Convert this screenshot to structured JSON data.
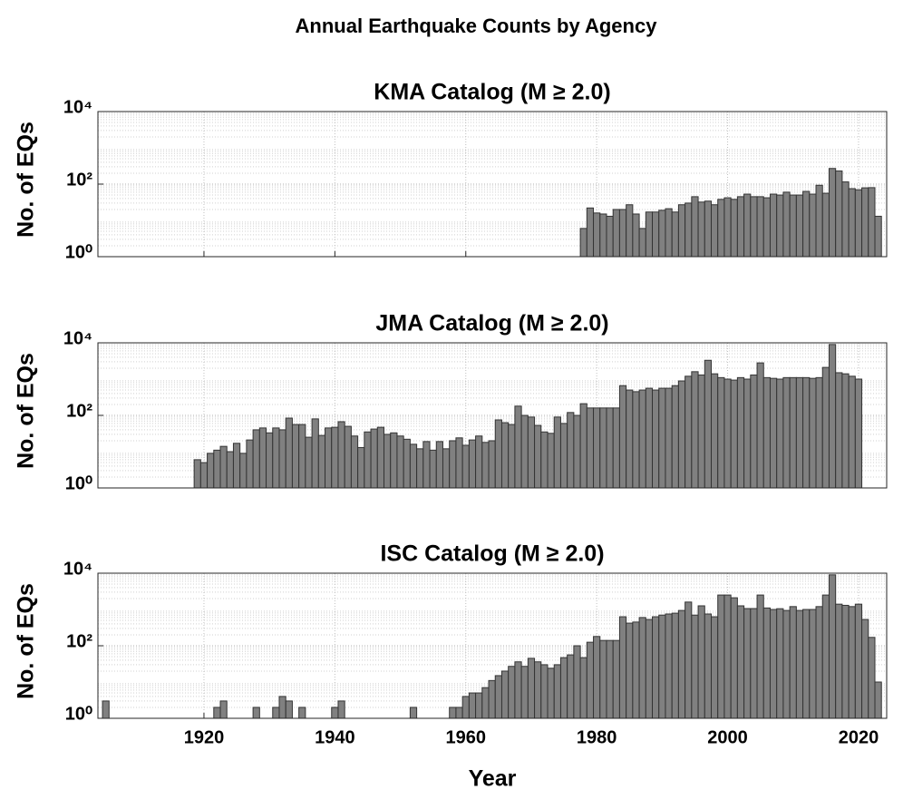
{
  "title": "Annual Earthquake Counts by Agency",
  "chart_data": [
    {
      "type": "bar",
      "title": "KMA Catalog (M ≥ 2.0)",
      "y_label": "No. of EQs",
      "color": "#808080",
      "edge_color": "#333333",
      "log_y": true,
      "grid": true,
      "xlim": [
        1903.8,
        2024.3
      ],
      "ylim": [
        1,
        10000
      ],
      "yticks": [
        {
          "value": 1,
          "label": "10⁰"
        },
        {
          "value": 100,
          "label": "10²"
        },
        {
          "value": 10000,
          "label": "10⁴"
        }
      ],
      "xticks": [
        1920,
        1940,
        1960,
        1980,
        2000,
        2020
      ],
      "xtick_labels": false,
      "x": [
        1978,
        1979,
        1980,
        1981,
        1982,
        1983,
        1984,
        1985,
        1986,
        1987,
        1988,
        1989,
        1990,
        1991,
        1992,
        1993,
        1994,
        1995,
        1996,
        1997,
        1998,
        1999,
        2000,
        2001,
        2002,
        2003,
        2004,
        2005,
        2006,
        2007,
        2008,
        2009,
        2010,
        2011,
        2012,
        2013,
        2014,
        2015,
        2016,
        2017,
        2018,
        2019,
        2020,
        2021,
        2022,
        2023
      ],
      "values": [
        6,
        22,
        16,
        15,
        13,
        20,
        20,
        27,
        15,
        6,
        17,
        17,
        19,
        21,
        17,
        27,
        30,
        45,
        32,
        34,
        27,
        38,
        42,
        38,
        45,
        53,
        45,
        45,
        42,
        53,
        50,
        60,
        50,
        50,
        63,
        53,
        93,
        56,
        270,
        230,
        115,
        75,
        70,
        79,
        80,
        13
      ]
    },
    {
      "type": "bar",
      "title": "JMA Catalog (M ≥ 2.0)",
      "y_label": "No. of EQs",
      "color": "#808080",
      "edge_color": "#333333",
      "log_y": true,
      "grid": true,
      "xlim": [
        1903.8,
        2024.3
      ],
      "ylim": [
        1,
        10000
      ],
      "yticks": [
        {
          "value": 1,
          "label": "10⁰"
        },
        {
          "value": 100,
          "label": "10²"
        },
        {
          "value": 10000,
          "label": "10⁴"
        }
      ],
      "xticks": [
        1920,
        1940,
        1960,
        1980,
        2000,
        2020
      ],
      "xtick_labels": false,
      "x": [
        1919,
        1920,
        1921,
        1922,
        1923,
        1924,
        1925,
        1926,
        1927,
        1928,
        1929,
        1930,
        1931,
        1932,
        1933,
        1934,
        1935,
        1936,
        1937,
        1938,
        1939,
        1940,
        1941,
        1942,
        1943,
        1944,
        1945,
        1946,
        1947,
        1948,
        1949,
        1950,
        1951,
        1952,
        1953,
        1954,
        1955,
        1956,
        1957,
        1958,
        1959,
        1960,
        1961,
        1962,
        1963,
        1964,
        1965,
        1966,
        1967,
        1968,
        1969,
        1970,
        1971,
        1972,
        1973,
        1974,
        1975,
        1976,
        1977,
        1978,
        1979,
        1980,
        1981,
        1982,
        1983,
        1984,
        1985,
        1986,
        1987,
        1988,
        1989,
        1990,
        1991,
        1992,
        1993,
        1994,
        1995,
        1996,
        1997,
        1998,
        1999,
        2000,
        2001,
        2002,
        2003,
        2004,
        2005,
        2006,
        2007,
        2008,
        2009,
        2010,
        2011,
        2012,
        2013,
        2014,
        2015,
        2016,
        2017,
        2018,
        2019,
        2020
      ],
      "values": [
        6,
        5,
        9,
        11,
        14,
        10,
        17,
        9,
        21,
        40,
        45,
        33,
        45,
        40,
        84,
        56,
        56,
        25,
        80,
        28,
        45,
        47,
        67,
        50,
        27,
        13,
        35,
        42,
        47,
        30,
        33,
        27,
        22,
        16,
        12,
        19,
        11,
        19,
        12,
        20,
        24,
        15,
        21,
        27,
        18,
        20,
        75,
        63,
        56,
        180,
        100,
        90,
        53,
        35,
        32,
        90,
        60,
        120,
        100,
        210,
        160,
        160,
        160,
        160,
        160,
        660,
        500,
        450,
        500,
        560,
        500,
        560,
        560,
        660,
        890,
        1200,
        1600,
        1300,
        3300,
        1400,
        1100,
        1000,
        940,
        1100,
        1000,
        1300,
        2800,
        1100,
        1050,
        1000,
        1100,
        1100,
        1100,
        1100,
        1050,
        1100,
        2100,
        9000,
        1500,
        1400,
        1200,
        1000
      ]
    },
    {
      "type": "bar",
      "title": "ISC Catalog (M ≥ 2.0)",
      "y_label": "No. of EQs",
      "x_label": "Year",
      "color": "#808080",
      "edge_color": "#333333",
      "log_y": true,
      "grid": true,
      "xlim": [
        1903.8,
        2024.3
      ],
      "ylim": [
        1,
        10000
      ],
      "yticks": [
        {
          "value": 1,
          "label": "10⁰"
        },
        {
          "value": 100,
          "label": "10²"
        },
        {
          "value": 10000,
          "label": "10⁴"
        }
      ],
      "xticks": [
        1920,
        1940,
        1960,
        1980,
        2000,
        2020
      ],
      "x": [
        1905,
        1910,
        1913,
        1914,
        1917,
        1919,
        1922,
        1923,
        1926,
        1928,
        1931,
        1932,
        1933,
        1935,
        1938,
        1940,
        1941,
        1944,
        1948,
        1949,
        1950,
        1952,
        1955,
        1958,
        1959,
        1960,
        1961,
        1962,
        1963,
        1964,
        1965,
        1966,
        1967,
        1968,
        1969,
        1970,
        1971,
        1972,
        1973,
        1974,
        1975,
        1976,
        1977,
        1978,
        1979,
        1980,
        1981,
        1982,
        1983,
        1984,
        1985,
        1986,
        1987,
        1988,
        1989,
        1990,
        1991,
        1992,
        1993,
        1994,
        1995,
        1996,
        1997,
        1998,
        1999,
        2000,
        2001,
        2002,
        2003,
        2004,
        2005,
        2006,
        2007,
        2008,
        2009,
        2010,
        2011,
        2012,
        2013,
        2014,
        2015,
        2016,
        2017,
        2018,
        2019,
        2020,
        2021,
        2022,
        2023
      ],
      "values": [
        3,
        1,
        1,
        1,
        1,
        1,
        2,
        3,
        1,
        2,
        2,
        4,
        3,
        2,
        1,
        2,
        3,
        1,
        1,
        1,
        1,
        2,
        1,
        2,
        2,
        4,
        5,
        5,
        7,
        11,
        15,
        20,
        27,
        36,
        27,
        45,
        36,
        30,
        24,
        30,
        47,
        56,
        100,
        47,
        125,
        180,
        140,
        140,
        140,
        630,
        420,
        450,
        600,
        530,
        630,
        700,
        750,
        790,
        940,
        1600,
        700,
        1260,
        750,
        630,
        2500,
        2500,
        2100,
        1260,
        1060,
        1060,
        2500,
        1100,
        1000,
        1050,
        940,
        1200,
        940,
        1000,
        1000,
        1200,
        2500,
        9000,
        1400,
        1300,
        1200,
        1400,
        530,
        170,
        10
      ]
    }
  ]
}
